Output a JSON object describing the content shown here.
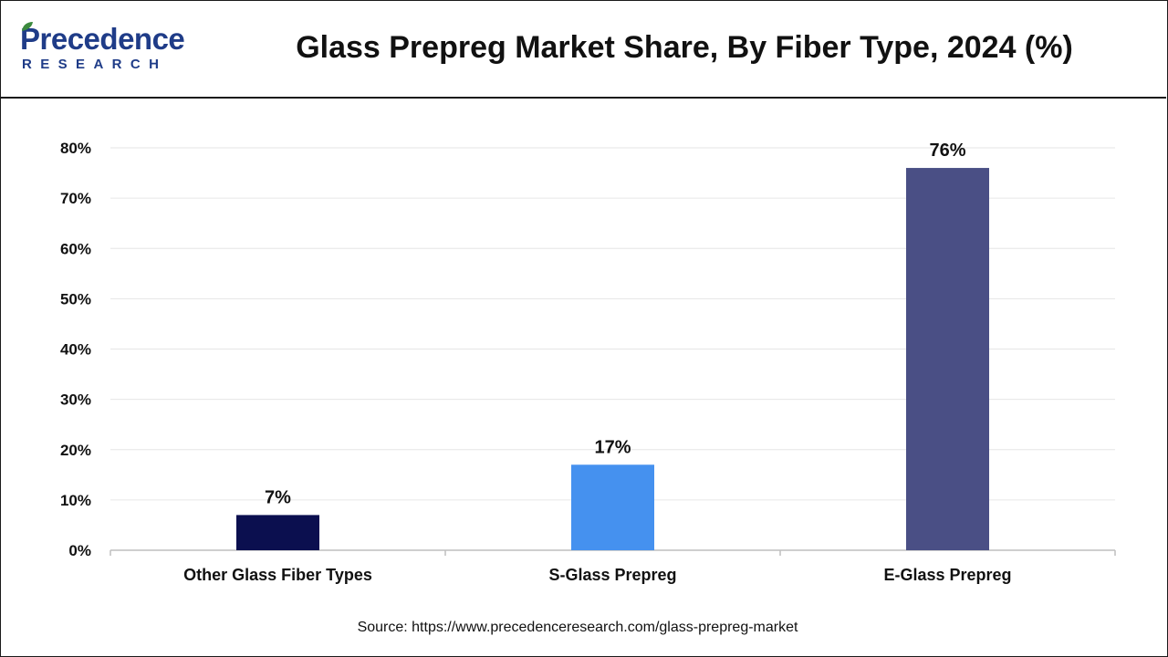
{
  "header": {
    "logo_top": "Precedence",
    "logo_bottom": "RESEARCH",
    "title": "Glass Prepreg Market Share, By Fiber Type, 2024 (%)"
  },
  "chart_data": {
    "type": "bar",
    "title": "Glass Prepreg Market Share, By Fiber Type, 2024 (%)",
    "categories": [
      "Other Glass Fiber Types",
      "S-Glass Prepreg",
      "E-Glass Prepreg"
    ],
    "values": [
      7,
      17,
      76
    ],
    "value_labels": [
      "7%",
      "17%",
      "76%"
    ],
    "colors": [
      "#0b0f4f",
      "#4591ef",
      "#4a4f85"
    ],
    "ylim": [
      0,
      80
    ],
    "yticks": [
      "0%",
      "10%",
      "20%",
      "30%",
      "40%",
      "50%",
      "60%",
      "70%",
      "80%"
    ],
    "grid": true,
    "xlabel": "",
    "ylabel": ""
  },
  "footer": {
    "source": "Source: https://www.precedenceresearch.com/glass-prepreg-market"
  }
}
